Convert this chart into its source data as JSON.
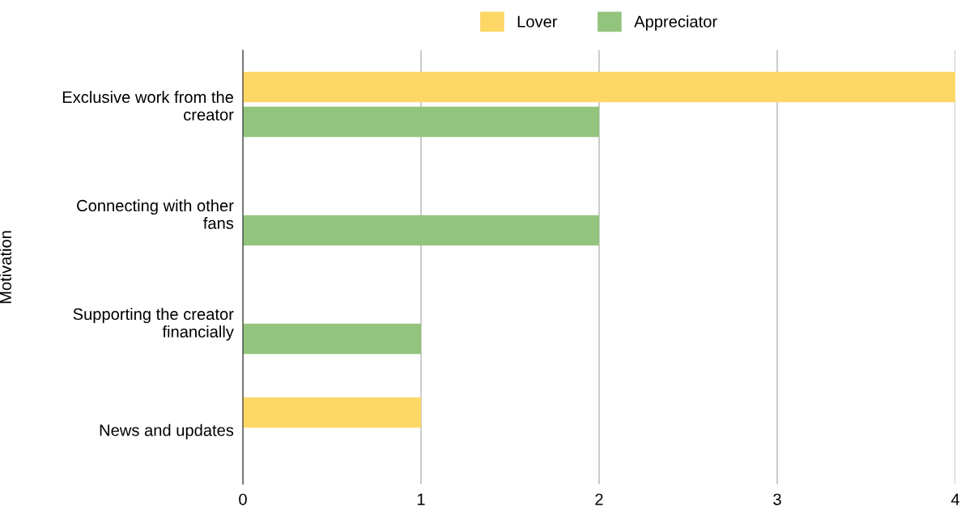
{
  "chart_data": {
    "type": "bar",
    "orientation": "horizontal",
    "ylabel": "Motivation",
    "categories": [
      "Exclusive work from the creator",
      "Connecting with other fans",
      "Supporting the creator financially",
      "News and updates"
    ],
    "series": [
      {
        "name": "Lover",
        "color": "#fdd766",
        "values": [
          4,
          null,
          null,
          1
        ]
      },
      {
        "name": "Appreciator",
        "color": "#93c47d",
        "values": [
          2,
          2,
          1,
          null
        ]
      }
    ],
    "xlim": [
      0,
      4
    ],
    "xticks": [
      0,
      1,
      2,
      3,
      4
    ],
    "grid": "x",
    "legend": "top"
  }
}
